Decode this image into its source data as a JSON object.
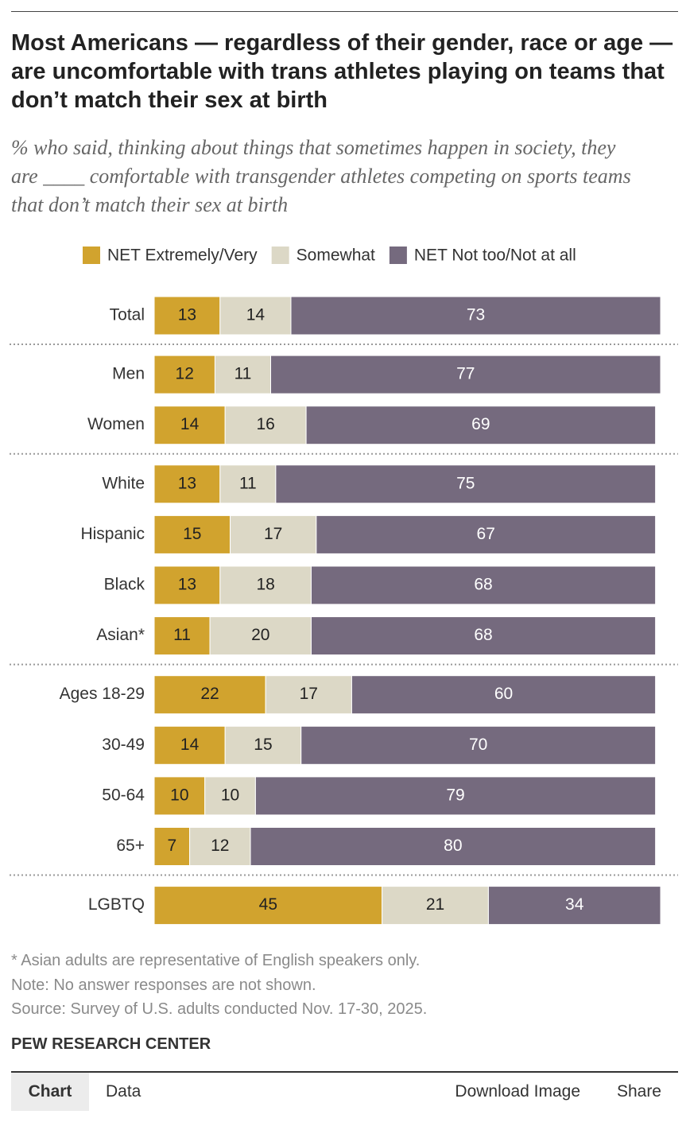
{
  "chart_data": {
    "type": "bar",
    "orientation": "horizontal",
    "stacked": true,
    "title": "Most Americans — regardless of their gender, race or age — are uncomfortable with trans athletes playing on teams that don’t match their sex at birth",
    "subtitle": "% who said, thinking about things that sometimes happen in society, they are ____ comfortable with transgender athletes competing on sports teams that don’t match their sex at birth",
    "categories": [
      "Total",
      "Men",
      "Women",
      "White",
      "Hispanic",
      "Black",
      "Asian*",
      "Ages 18-29",
      "30-49",
      "50-64",
      "65+",
      "LGBTQ"
    ],
    "series": [
      {
        "name": "NET Extremely/Very",
        "color": "#d1a32e",
        "values": [
          13,
          12,
          14,
          13,
          15,
          13,
          11,
          22,
          14,
          10,
          7,
          45
        ]
      },
      {
        "name": "Somewhat",
        "color": "#dcd8c6",
        "values": [
          14,
          11,
          16,
          11,
          17,
          18,
          20,
          17,
          15,
          10,
          12,
          21
        ]
      },
      {
        "name": "NET Not too/Not at all",
        "color": "#756a7e",
        "values": [
          73,
          77,
          69,
          75,
          67,
          68,
          68,
          60,
          70,
          79,
          80,
          34
        ]
      }
    ],
    "xlim": [
      0,
      100
    ],
    "notes": [
      "* Asian adults are representative of English speakers only.",
      "Note: No answer responses are not shown.",
      "Source: Survey of U.S. adults conducted Nov. 17-30, 2025."
    ],
    "brand": "PEW RESEARCH CENTER"
  },
  "tabs": [
    "Chart",
    "Data",
    "Download Image",
    "Share"
  ]
}
